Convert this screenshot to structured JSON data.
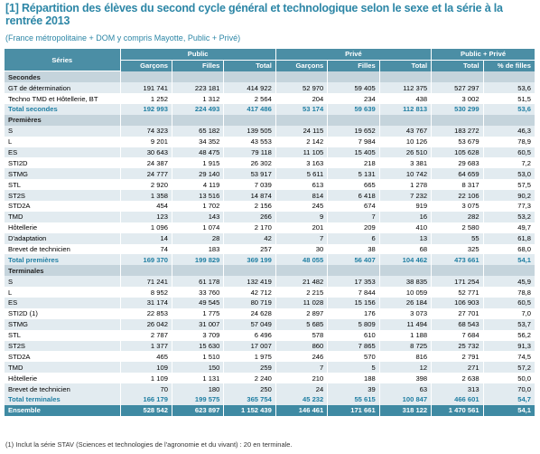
{
  "header": {
    "title": "[1] Répartition des élèves du second cycle général et technologique selon le sexe et la série à la rentrée 2013",
    "subtitle": "(France métropolitaine + DOM y compris Mayotte, Public + Privé)"
  },
  "table": {
    "first_header": "Séries",
    "groups": [
      {
        "label": "Public",
        "span": 3
      },
      {
        "label": "Privé",
        "span": 3
      },
      {
        "label": "Public + Privé",
        "span": 2
      }
    ],
    "columns": [
      "Garçons",
      "Filles",
      "Total",
      "Garçons",
      "Filles",
      "Total",
      "Total",
      "% de filles"
    ],
    "sections": [
      {
        "title": "Secondes",
        "rows": [
          [
            "GT de détermination",
            "191 741",
            "223 181",
            "414 922",
            "52 970",
            "59 405",
            "112 375",
            "527 297",
            "53,6"
          ],
          [
            "Techno TMD et Hôtellerie, BT",
            "1 252",
            "1 312",
            "2 564",
            "204",
            "234",
            "438",
            "3 002",
            "51,5"
          ]
        ],
        "total": [
          "Total secondes",
          "192 993",
          "224 493",
          "417 486",
          "53 174",
          "59 639",
          "112 813",
          "530 299",
          "53,6"
        ]
      },
      {
        "title": "Premières",
        "rows": [
          [
            "S",
            "74 323",
            "65 182",
            "139 505",
            "24 115",
            "19 652",
            "43 767",
            "183 272",
            "46,3"
          ],
          [
            "L",
            "9 201",
            "34 352",
            "43 553",
            "2 142",
            "7 984",
            "10 126",
            "53 679",
            "78,9"
          ],
          [
            "ES",
            "30 643",
            "48 475",
            "79 118",
            "11 105",
            "15 405",
            "26 510",
            "105 628",
            "60,5"
          ],
          [
            "STI2D",
            "24 387",
            "1 915",
            "26 302",
            "3 163",
            "218",
            "3 381",
            "29 683",
            "7,2"
          ],
          [
            "STMG",
            "24 777",
            "29 140",
            "53 917",
            "5 611",
            "5 131",
            "10 742",
            "64 659",
            "53,0"
          ],
          [
            "STL",
            "2 920",
            "4 119",
            "7 039",
            "613",
            "665",
            "1 278",
            "8 317",
            "57,5"
          ],
          [
            "ST2S",
            "1 358",
            "13 516",
            "14 874",
            "814",
            "6 418",
            "7 232",
            "22 106",
            "90,2"
          ],
          [
            "STD2A",
            "454",
            "1 702",
            "2 156",
            "245",
            "674",
            "919",
            "3 075",
            "77,3"
          ],
          [
            "TMD",
            "123",
            "143",
            "266",
            "9",
            "7",
            "16",
            "282",
            "53,2"
          ],
          [
            "Hôtellerie",
            "1 096",
            "1 074",
            "2 170",
            "201",
            "209",
            "410",
            "2 580",
            "49,7"
          ],
          [
            "D'adaptation",
            "14",
            "28",
            "42",
            "7",
            "6",
            "13",
            "55",
            "61,8"
          ],
          [
            "Brevet de technicien",
            "74",
            "183",
            "257",
            "30",
            "38",
            "68",
            "325",
            "68,0"
          ]
        ],
        "total": [
          "Total premières",
          "169 370",
          "199 829",
          "369 199",
          "48 055",
          "56 407",
          "104 462",
          "473 661",
          "54,1"
        ]
      },
      {
        "title": "Terminales",
        "rows": [
          [
            "S",
            "71 241",
            "61 178",
            "132 419",
            "21 482",
            "17 353",
            "38 835",
            "171 254",
            "45,9"
          ],
          [
            "L",
            "8 952",
            "33 760",
            "42 712",
            "2 215",
            "7 844",
            "10 059",
            "52 771",
            "78,8"
          ],
          [
            "ES",
            "31 174",
            "49 545",
            "80 719",
            "11 028",
            "15 156",
            "26 184",
            "106 903",
            "60,5"
          ],
          [
            "STI2D (1)",
            "22 853",
            "1 775",
            "24 628",
            "2 897",
            "176",
            "3 073",
            "27 701",
            "7,0"
          ],
          [
            "STMG",
            "26 042",
            "31 007",
            "57 049",
            "5 685",
            "5 809",
            "11 494",
            "68 543",
            "53,7"
          ],
          [
            "STL",
            "2 787",
            "3 709",
            "6 496",
            "578",
            "610",
            "1 188",
            "7 684",
            "56,2"
          ],
          [
            "ST2S",
            "1 377",
            "15 630",
            "17 007",
            "860",
            "7 865",
            "8 725",
            "25 732",
            "91,3"
          ],
          [
            "STD2A",
            "465",
            "1 510",
            "1 975",
            "246",
            "570",
            "816",
            "2 791",
            "74,5"
          ],
          [
            "TMD",
            "109",
            "150",
            "259",
            "7",
            "5",
            "12",
            "271",
            "57,2"
          ],
          [
            "Hôtellerie",
            "1 109",
            "1 131",
            "2 240",
            "210",
            "188",
            "398",
            "2 638",
            "50,0"
          ],
          [
            "Brevet de technicien",
            "70",
            "180",
            "250",
            "24",
            "39",
            "63",
            "313",
            "70,0"
          ]
        ],
        "total": [
          "Total terminales",
          "166 179",
          "199 575",
          "365 754",
          "45 232",
          "55 615",
          "100 847",
          "466 601",
          "54,7"
        ]
      }
    ],
    "grand_total": [
      "Ensemble",
      "528 542",
      "623 897",
      "1 152 439",
      "146 461",
      "171 661",
      "318 122",
      "1 470 561",
      "54,1"
    ]
  },
  "footnote": "(1) Inclut la série STAV (Sciences et technologies de l'agronomie et du vivant) : 20 en terminale."
}
